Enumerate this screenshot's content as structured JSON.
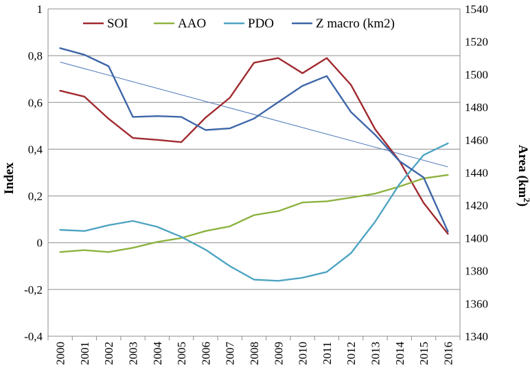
{
  "chart_data": {
    "type": "line",
    "title": "",
    "xlabel": "",
    "ylabel": "Index",
    "y2label_main": "Area (km",
    "y2label_sup": "2",
    "y2label_end": ")",
    "categories": [
      "2000",
      "2001",
      "2002",
      "2003",
      "2004",
      "2005",
      "2006",
      "2007",
      "2008",
      "2009",
      "2010",
      "2011",
      "2012",
      "2013",
      "2014",
      "2015",
      "2016"
    ],
    "y_ticks": [
      "-0,4",
      "-0,2",
      "0",
      "0,2",
      "0,4",
      "0,6",
      "0,8",
      "1"
    ],
    "y_tick_values": [
      -0.4,
      -0.2,
      0,
      0.2,
      0.4,
      0.6,
      0.8,
      1
    ],
    "y2_ticks": [
      "1340",
      "1360",
      "1380",
      "1400",
      "1420",
      "1440",
      "1460",
      "1480",
      "1500",
      "1520",
      "1540"
    ],
    "y2_tick_values": [
      1340,
      1360,
      1380,
      1400,
      1420,
      1440,
      1460,
      1480,
      1500,
      1520,
      1540
    ],
    "ylim": [
      -0.4,
      1.0
    ],
    "y2lim": [
      1340,
      1540
    ],
    "grid": true,
    "legend_position": "top",
    "series": [
      {
        "name": "SOI",
        "axis": "left",
        "color": "#a0292e",
        "values": [
          0.65,
          0.625,
          0.53,
          0.448,
          0.44,
          0.43,
          0.535,
          0.62,
          0.77,
          0.79,
          0.725,
          0.79,
          0.675,
          0.485,
          0.35,
          0.17,
          0.038
        ]
      },
      {
        "name": "AAO",
        "axis": "left",
        "color": "#8db340",
        "values": [
          -0.04,
          -0.032,
          -0.04,
          -0.022,
          0.003,
          0.02,
          0.05,
          0.07,
          0.118,
          0.135,
          0.172,
          0.177,
          0.193,
          0.21,
          0.24,
          0.275,
          0.29
        ]
      },
      {
        "name": "PDO",
        "axis": "left",
        "color": "#4ea4c2",
        "values": [
          0.055,
          0.05,
          0.075,
          0.093,
          0.068,
          0.025,
          -0.03,
          -0.1,
          -0.158,
          -0.163,
          -0.15,
          -0.125,
          -0.045,
          0.09,
          0.25,
          0.375,
          0.425
        ]
      },
      {
        "name": "Z macro (km2)",
        "axis": "right",
        "color": "#3d65a8",
        "values": [
          1516,
          1512,
          1505,
          1474,
          1474.5,
          1474,
          1466,
          1467,
          1473,
          1483,
          1493,
          1499,
          1477,
          1463,
          1447,
          1437,
          1404
        ]
      }
    ],
    "trendline": {
      "series": "Z macro (km2)",
      "axis": "right",
      "color": "#4a76b8",
      "start": 1507.5,
      "end": 1443.5
    }
  }
}
